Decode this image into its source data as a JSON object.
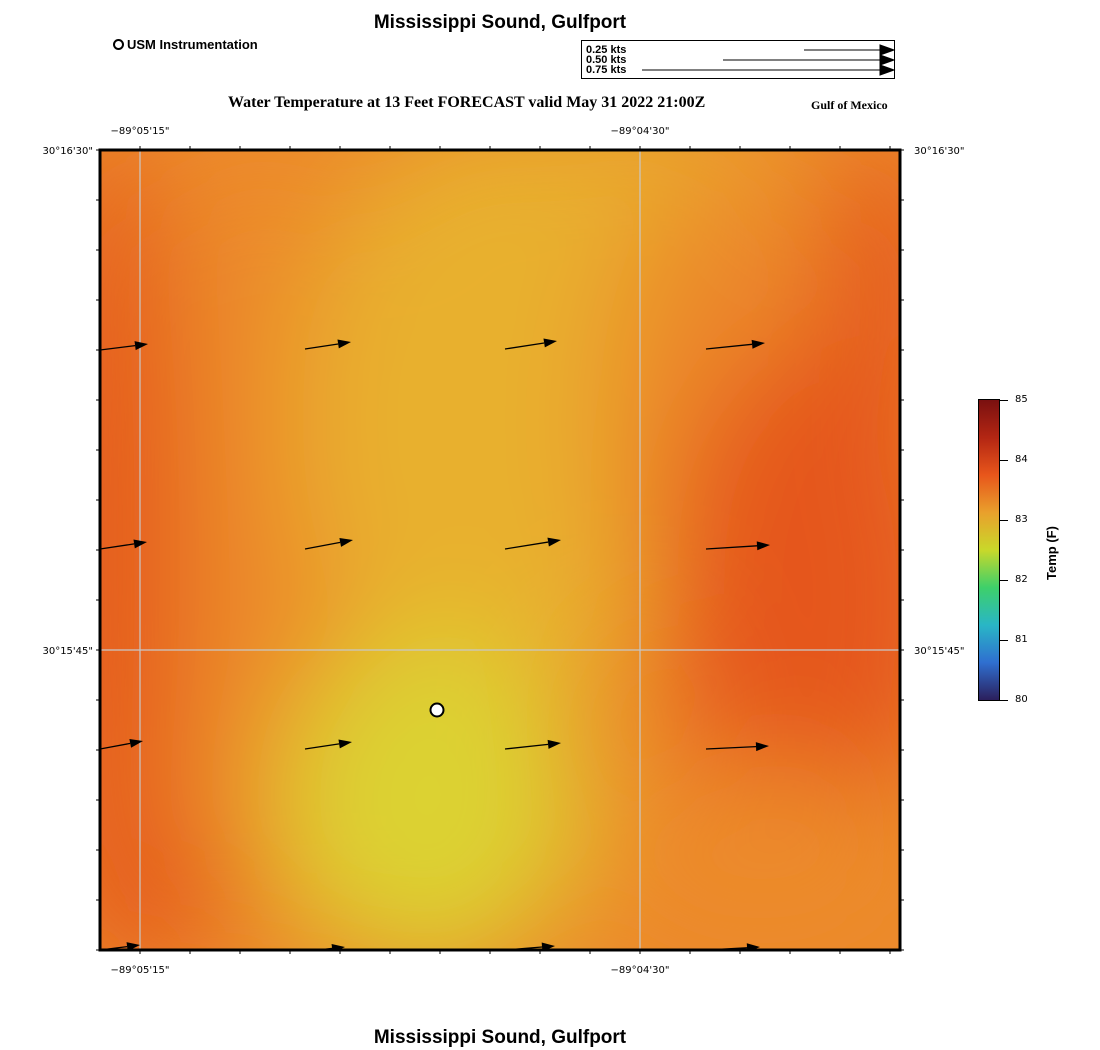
{
  "title": "Mississippi Sound, Gulfport",
  "station_legend": "USM Instrumentation",
  "vector_legend": [
    "0.25 kts",
    "0.50 kts",
    "0.75 kts"
  ],
  "subtitle": "Water Temperature at 13 Feet FORECAST valid May 31 2022 21:00Z",
  "region": "Gulf of Mexico",
  "axes": {
    "lon_labels": [
      "−89°05'15\"",
      "−89°04'30\""
    ],
    "lat_labels": [
      "30°16'30\"",
      "30°15'45\""
    ]
  },
  "colorbar": {
    "title": "Temp (F)",
    "ticks": [
      "85",
      "84",
      "83",
      "82",
      "81",
      "80"
    ],
    "colors": [
      "#2b1f5c",
      "#2f6fd0",
      "#29b6c6",
      "#3ed06a",
      "#c9d82a",
      "#e9a02c",
      "#e8561b",
      "#b32613",
      "#7a1010"
    ]
  },
  "field_colors": {
    "hot": "#e5561c",
    "warm": "#ec8a2a",
    "mild": "#e8b02e",
    "cool": "#dcd231"
  },
  "vector_color": "#000000"
}
